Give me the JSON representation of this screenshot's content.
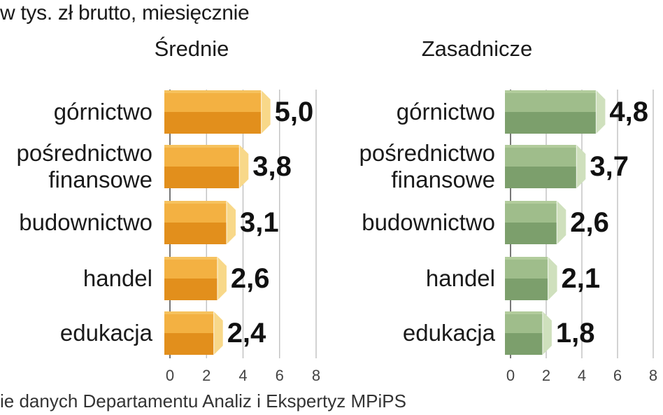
{
  "unit_label": "w tys. zł brutto, miesięcznie",
  "source": "ie danych Departamentu Analiz i Ekspertyz MPiPS",
  "chart_data": [
    {
      "type": "bar",
      "orientation": "horizontal",
      "title": "Średnie",
      "categories": [
        [
          "górnictwo"
        ],
        [
          "pośrednictwo",
          "finansowe"
        ],
        [
          "budownictwo"
        ],
        [
          "handel"
        ],
        [
          "edukacja"
        ]
      ],
      "values": [
        5.0,
        3.8,
        3.1,
        2.6,
        2.4
      ],
      "value_labels": [
        "5,0",
        "3,8",
        "3,1",
        "2,6",
        "2,4"
      ],
      "xlim": [
        0,
        8
      ],
      "ticks": [
        0,
        2,
        4,
        6,
        8
      ],
      "grid": true,
      "colors": {
        "front": "#f0a42c",
        "front_dark": "#e28f1c",
        "top": "#f6c25e",
        "side": "#f8d889"
      }
    },
    {
      "type": "bar",
      "orientation": "horizontal",
      "title": "Zasadnicze",
      "categories": [
        [
          "górnictwo"
        ],
        [
          "pośrednictwo",
          "finansowe"
        ],
        [
          "budownictwo"
        ],
        [
          "handel"
        ],
        [
          "edukacja"
        ]
      ],
      "values": [
        4.8,
        3.7,
        2.6,
        2.1,
        1.8
      ],
      "value_labels": [
        "4,8",
        "3,7",
        "2,6",
        "2,1",
        "1,8"
      ],
      "xlim": [
        0,
        8
      ],
      "ticks": [
        0,
        2,
        4,
        6,
        8
      ],
      "grid": true,
      "colors": {
        "front": "#8fb07e",
        "front_dark": "#7c9f6c",
        "top": "#b2cc9c",
        "side": "#cfe0bd"
      }
    }
  ]
}
